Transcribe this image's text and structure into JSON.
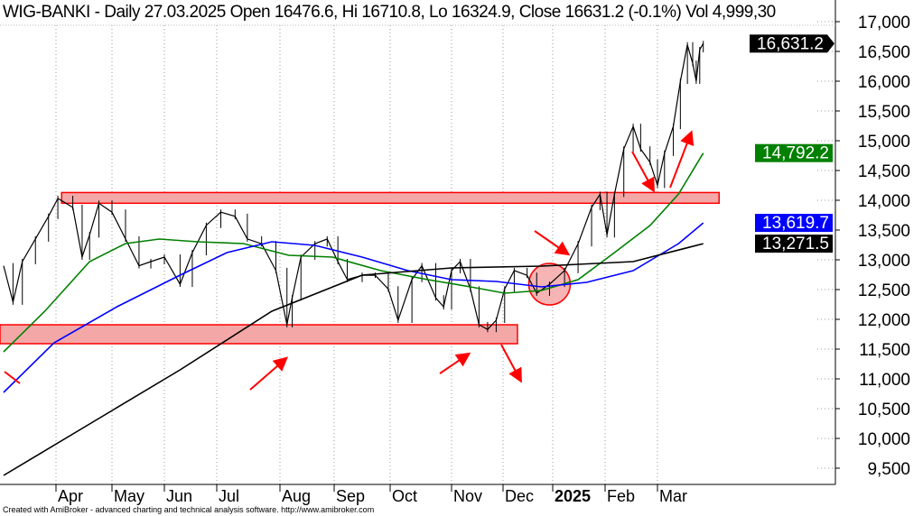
{
  "header": {
    "title": "WIG-BANKI - Daily 27.03.2025 Open 16476.6, Hi 16710.8, Lo 16324.9, Close 16631.2 (-0.1%) Vol 4,999,30"
  },
  "footer": {
    "text": "Created with AmiBroker - advanced charting and technical analysis software. http://www.amibroker.com"
  },
  "chart_data": {
    "type": "line",
    "ylim": [
      9250,
      17100
    ],
    "y_ticks": [
      17000,
      16500,
      16000,
      15500,
      15000,
      14500,
      14000,
      13500,
      13000,
      12500,
      12000,
      11500,
      11000,
      10500,
      10000,
      9500
    ],
    "y_tick_labels": [
      "17,000",
      "16,500",
      "16,000",
      "15,500",
      "15,000",
      "14,500",
      "14,000",
      "13,500",
      "13,000",
      "12,500",
      "12,000",
      "11,500",
      "11,000",
      "10,500",
      "10,000",
      "9,500"
    ],
    "x_ticks": [
      {
        "date": "2024-04-01",
        "label": "Apr"
      },
      {
        "date": "2024-05-01",
        "label": "May"
      },
      {
        "date": "2024-06-01",
        "label": "Jun"
      },
      {
        "date": "2024-07-01",
        "label": "Jul"
      },
      {
        "date": "2024-08-01",
        "label": "Aug"
      },
      {
        "date": "2024-09-01",
        "label": "Sep"
      },
      {
        "date": "2024-10-01",
        "label": "Oct"
      },
      {
        "date": "2024-11-01",
        "label": "Nov"
      },
      {
        "date": "2024-12-01",
        "label": "Dec"
      },
      {
        "date": "2025-01-01",
        "label": "2025",
        "bold": true
      },
      {
        "date": "2025-02-01",
        "label": "Feb"
      },
      {
        "date": "2025-03-01",
        "label": "Mar"
      }
    ],
    "grid": "vertical dotted at month ticks",
    "series": [
      {
        "role": "price",
        "color": "#000000",
        "points": [
          [
            "2024-03-04",
            12900
          ],
          [
            "2024-03-09",
            12290
          ],
          [
            "2024-03-14",
            12970
          ],
          [
            "2024-03-21",
            13350
          ],
          [
            "2024-03-28",
            13730
          ],
          [
            "2024-04-02",
            14030
          ],
          [
            "2024-04-10",
            13880
          ],
          [
            "2024-04-15",
            13045
          ],
          [
            "2024-04-19",
            13420
          ],
          [
            "2024-04-24",
            13950
          ],
          [
            "2024-05-01",
            13800
          ],
          [
            "2024-05-09",
            13350
          ],
          [
            "2024-05-17",
            12900
          ],
          [
            "2024-05-24",
            12970
          ],
          [
            "2024-06-01",
            13045
          ],
          [
            "2024-06-10",
            12590
          ],
          [
            "2024-06-17",
            13120
          ],
          [
            "2024-06-25",
            13580
          ],
          [
            "2024-07-03",
            13800
          ],
          [
            "2024-07-10",
            13730
          ],
          [
            "2024-07-16",
            13350
          ],
          [
            "2024-07-23",
            13270
          ],
          [
            "2024-07-30",
            12820
          ],
          [
            "2024-08-05",
            11910
          ],
          [
            "2024-08-08",
            12360
          ],
          [
            "2024-08-13",
            13045
          ],
          [
            "2024-08-21",
            13270
          ],
          [
            "2024-08-28",
            13350
          ],
          [
            "2024-09-03",
            12970
          ],
          [
            "2024-09-08",
            12670
          ],
          [
            "2024-09-16",
            12740
          ],
          [
            "2024-09-23",
            12740
          ],
          [
            "2024-09-30",
            12510
          ],
          [
            "2024-10-05",
            11985
          ],
          [
            "2024-10-12",
            12670
          ],
          [
            "2024-10-17",
            12900
          ],
          [
            "2024-10-24",
            12360
          ],
          [
            "2024-10-28",
            12210
          ],
          [
            "2024-11-01",
            12820
          ],
          [
            "2024-11-06",
            12970
          ],
          [
            "2024-11-12",
            12510
          ],
          [
            "2024-11-17",
            11910
          ],
          [
            "2024-11-22",
            11830
          ],
          [
            "2024-11-27",
            11985
          ],
          [
            "2024-12-02",
            12510
          ],
          [
            "2024-12-08",
            12820
          ],
          [
            "2024-12-16",
            12740
          ],
          [
            "2024-12-22",
            12440
          ],
          [
            "2024-12-30",
            12590
          ],
          [
            "2025-01-08",
            12820
          ],
          [
            "2025-01-16",
            13270
          ],
          [
            "2025-01-24",
            13880
          ],
          [
            "2025-01-29",
            14100
          ],
          [
            "2025-02-02",
            13420
          ],
          [
            "2025-02-06",
            14100
          ],
          [
            "2025-02-11",
            14860
          ],
          [
            "2025-02-16",
            15240
          ],
          [
            "2025-02-20",
            14860
          ],
          [
            "2025-02-25",
            14640
          ],
          [
            "2025-03-01",
            14250
          ],
          [
            "2025-03-05",
            14790
          ],
          [
            "2025-03-10",
            15240
          ],
          [
            "2025-03-14",
            16000
          ],
          [
            "2025-03-18",
            16610
          ],
          [
            "2025-03-21",
            16300
          ],
          [
            "2025-03-23",
            16000
          ],
          [
            "2025-03-25",
            16530
          ],
          [
            "2025-03-27",
            16631.2
          ]
        ]
      },
      {
        "role": "moving-average",
        "color": "#008000",
        "last": "14,792.2",
        "points": [
          [
            "2024-03-04",
            11455
          ],
          [
            "2024-03-26",
            12136
          ],
          [
            "2024-04-19",
            12970
          ],
          [
            "2024-05-09",
            13273
          ],
          [
            "2024-05-29",
            13348
          ],
          [
            "2024-06-20",
            13303
          ],
          [
            "2024-07-14",
            13273
          ],
          [
            "2024-08-06",
            13076
          ],
          [
            "2024-08-31",
            13045
          ],
          [
            "2024-09-26",
            12818
          ],
          [
            "2024-10-20",
            12667
          ],
          [
            "2024-11-12",
            12545
          ],
          [
            "2024-12-02",
            12439
          ],
          [
            "2024-12-25",
            12485
          ],
          [
            "2025-01-16",
            12667
          ],
          [
            "2025-02-06",
            13121
          ],
          [
            "2025-02-25",
            13576
          ],
          [
            "2025-03-13",
            14106
          ],
          [
            "2025-03-27",
            14792.2
          ]
        ]
      },
      {
        "role": "moving-average",
        "color": "#0000ff",
        "last": "13,619.7",
        "points": [
          [
            "2024-03-04",
            10773
          ],
          [
            "2024-03-31",
            11606
          ],
          [
            "2024-05-04",
            12212
          ],
          [
            "2024-06-10",
            12742
          ],
          [
            "2024-07-06",
            13121
          ],
          [
            "2024-07-28",
            13303
          ],
          [
            "2024-08-21",
            13242
          ],
          [
            "2024-09-16",
            13045
          ],
          [
            "2024-10-10",
            12818
          ],
          [
            "2024-11-01",
            12667
          ],
          [
            "2024-11-27",
            12636
          ],
          [
            "2024-12-25",
            12545
          ],
          [
            "2025-01-21",
            12621
          ],
          [
            "2025-02-16",
            12818
          ],
          [
            "2025-03-13",
            13273
          ],
          [
            "2025-03-27",
            13619.7
          ]
        ]
      },
      {
        "role": "moving-average",
        "color": "#000000",
        "last": "13,271.5",
        "points": [
          [
            "2024-03-04",
            9379
          ],
          [
            "2024-04-19",
            10242
          ],
          [
            "2024-06-10",
            11152
          ],
          [
            "2024-07-28",
            12136
          ],
          [
            "2024-09-16",
            12742
          ],
          [
            "2024-11-01",
            12864
          ],
          [
            "2024-12-25",
            12894
          ],
          [
            "2025-02-16",
            12970
          ],
          [
            "2025-03-27",
            13271.5
          ]
        ]
      }
    ],
    "last_price_badge": {
      "label": "16,631.2",
      "color": "#000000"
    },
    "annotations": {
      "zones": [
        {
          "from": "2024-04-04",
          "to": "2025-04-05",
          "low": 13950,
          "high": 14130,
          "color": "#f4a7a7"
        },
        {
          "from": "2024-03-02",
          "to": "2024-12-10",
          "low": 11591,
          "high": 11909,
          "color": "#f4a7a7"
        }
      ],
      "highlight_circle": {
        "date": "2024-12-30",
        "value": 12590,
        "color": "#f4a7a7"
      },
      "arrow_color": "#ff0000"
    }
  }
}
